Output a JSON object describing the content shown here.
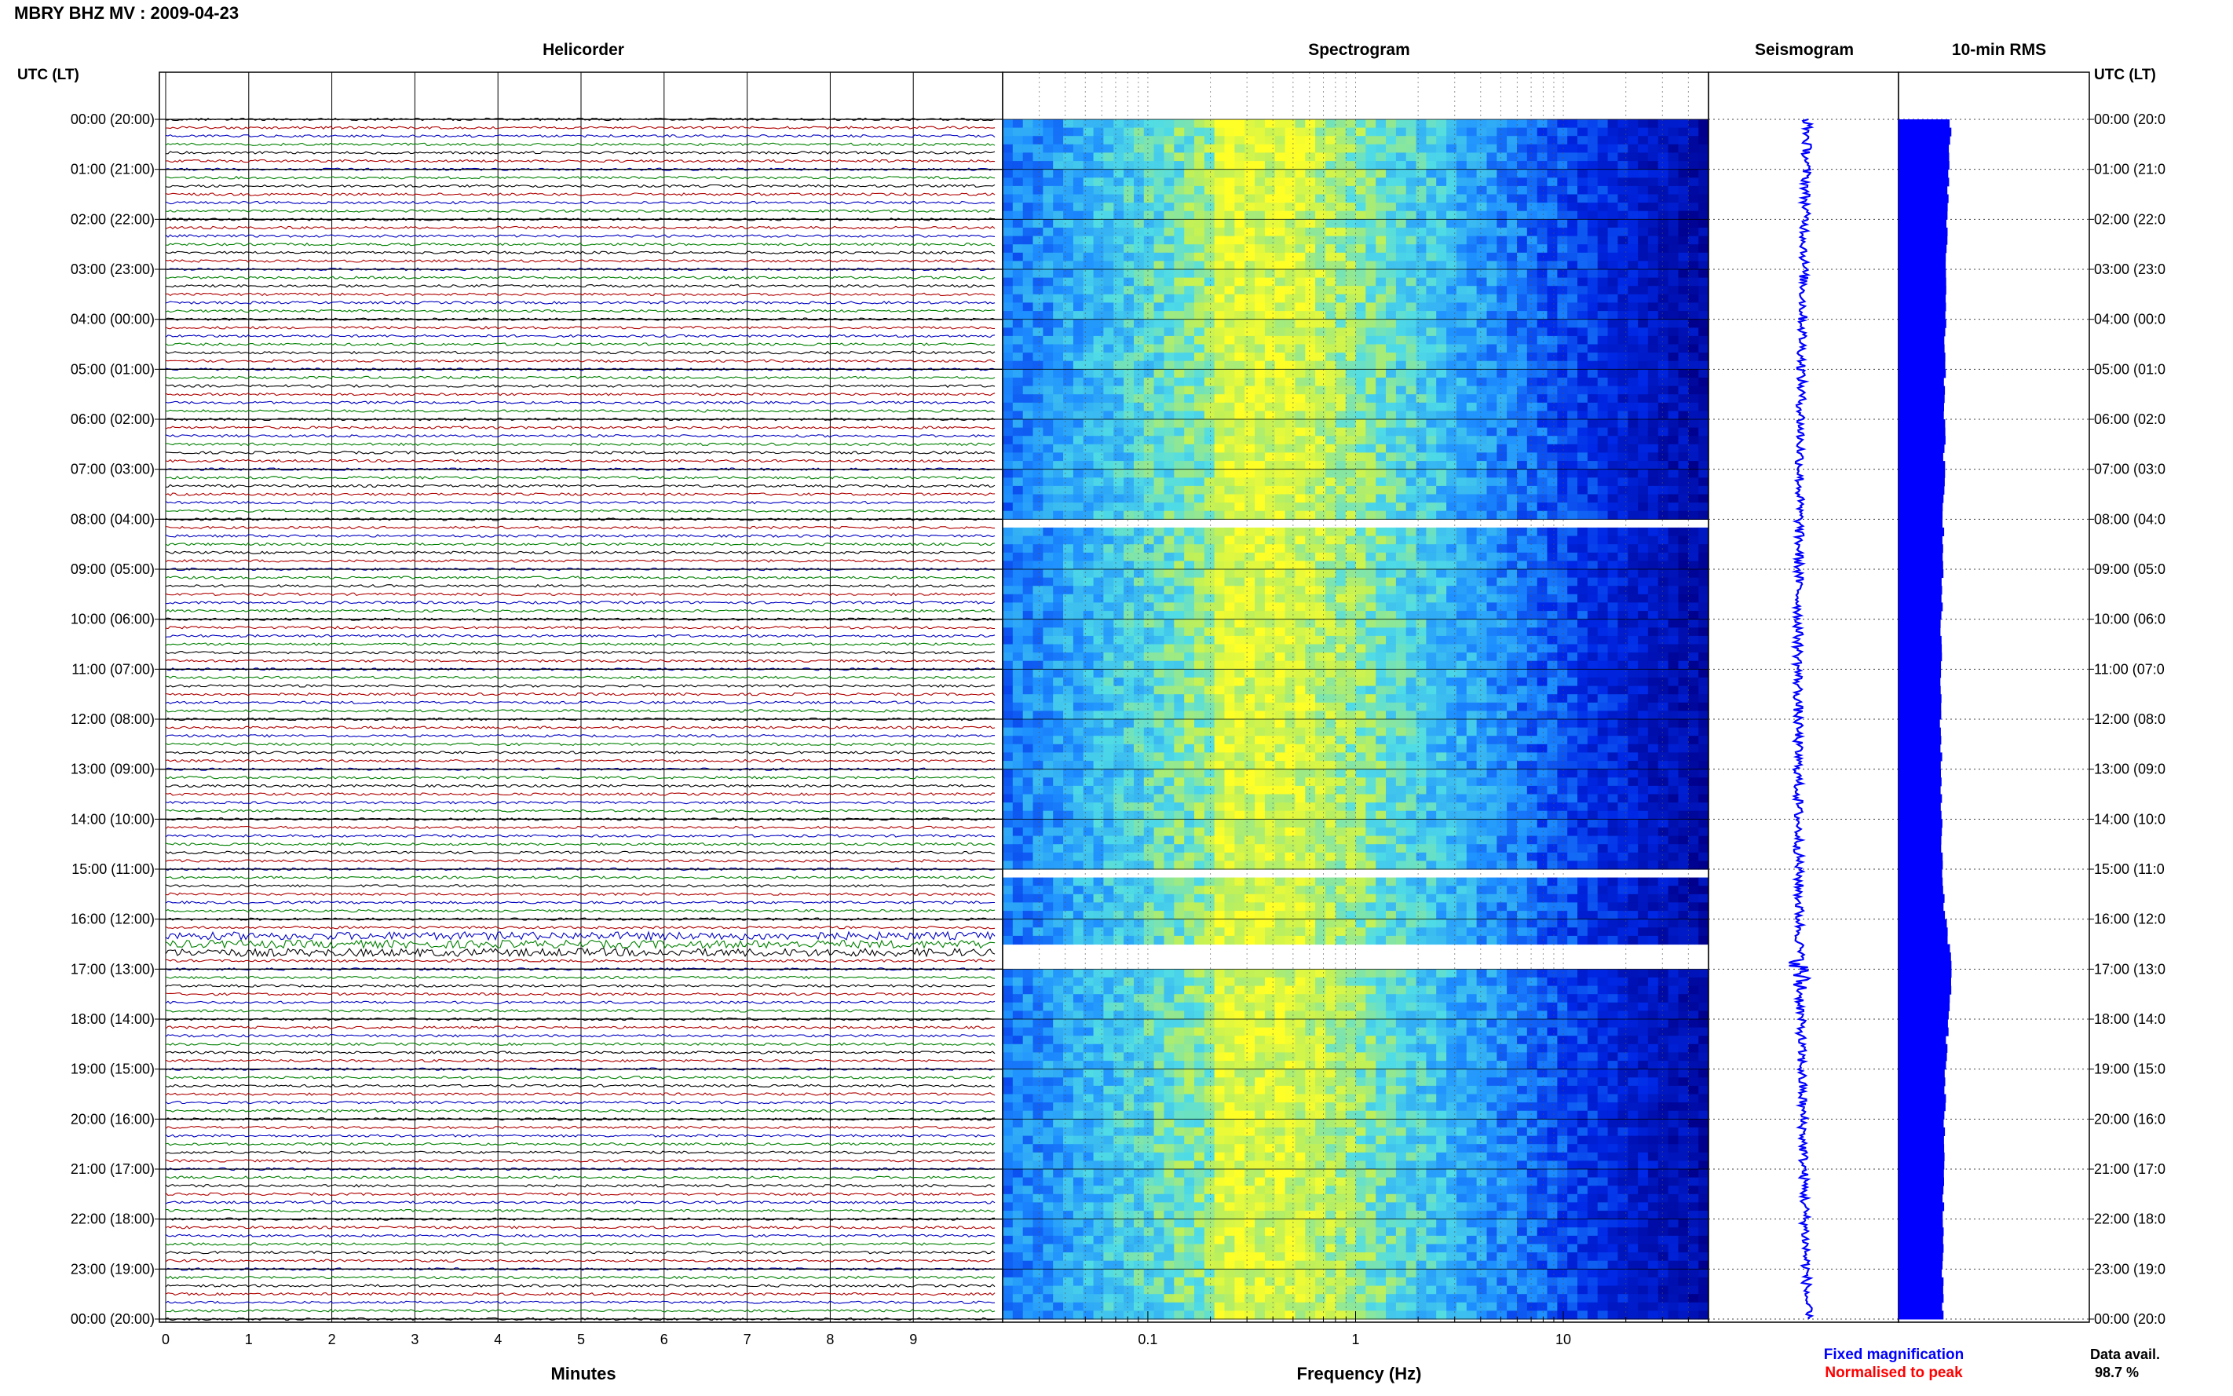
{
  "figure": {
    "title": "MBRY BHZ MV : 2009-04-23",
    "utc_header_left": "UTC (LT)",
    "utc_header_right": "UTC (LT)",
    "panel_titles": {
      "helicorder": "Helicorder",
      "spectrogram": "Spectrogram",
      "seismogram": "Seismogram",
      "rms": "10-min RMS"
    },
    "x_labels": {
      "helicorder": "Minutes",
      "spectrogram": "Frequency (Hz)"
    },
    "legend": {
      "fixed": "Fixed magnification",
      "normalised": "Normalised to peak"
    },
    "data_availability": {
      "label": "Data avail.",
      "value": "98.7 %"
    },
    "colors": {
      "trace_cycle": [
        "#000000",
        "#b00000",
        "#0000c0",
        "#008000"
      ],
      "fixed_legend": "#0000ff",
      "normalised_legend": "#ff0000",
      "spectrogram_low": "#00008b",
      "spectrogram_mid": "#1e90ff",
      "spectrogram_high": "#ffff00",
      "seismogram": "#0000ff",
      "rms": "#0000ff"
    }
  },
  "chart_data": [
    {
      "type": "line",
      "panel": "helicorder",
      "title": "Helicorder",
      "xlabel": "Minutes",
      "x_ticks": [
        0,
        1,
        2,
        3,
        4,
        5,
        6,
        7,
        8,
        9
      ],
      "xlim": [
        0,
        10
      ],
      "row_minutes": 10,
      "rows_per_day": 144,
      "y_tick_labels_left": [
        "00:00 (20:00)",
        "01:00 (21:00)",
        "02:00 (22:00)",
        "03:00 (23:00)",
        "04:00 (00:00)",
        "05:00 (01:00)",
        "06:00 (02:00)",
        "07:00 (03:00)",
        "08:00 (04:00)",
        "09:00 (05:00)",
        "10:00 (06:00)",
        "11:00 (07:00)",
        "12:00 (08:00)",
        "13:00 (09:00)",
        "14:00 (10:00)",
        "15:00 (11:00)",
        "16:00 (12:00)",
        "17:00 (13:00)",
        "18:00 (14:00)",
        "19:00 (15:00)",
        "20:00 (16:00)",
        "21:00 (17:00)",
        "22:00 (18:00)",
        "23:00 (19:00)",
        "00:00 (20:00)"
      ],
      "noisy_interval_utc": [
        "16:20",
        "16:40"
      ]
    },
    {
      "type": "heatmap",
      "panel": "spectrogram",
      "title": "Spectrogram",
      "xlabel": "Frequency (Hz)",
      "x_scale": "log",
      "xlim": [
        0.02,
        50
      ],
      "x_tick_labels": [
        "0.1",
        "1",
        "10"
      ],
      "x_tick_values": [
        0.1,
        1,
        10
      ],
      "peak_band_hz": [
        0.2,
        0.5
      ],
      "gaps_utc": [
        [
          "08:00",
          "08:10"
        ],
        [
          "15:00",
          "15:05"
        ],
        [
          "16:30",
          "16:55"
        ]
      ]
    },
    {
      "type": "line",
      "panel": "seismogram",
      "title": "Seismogram",
      "axis": "time (UTC)"
    },
    {
      "type": "bar",
      "panel": "rms",
      "title": "10-min RMS",
      "y_tick_labels_right": [
        "00:00 (20:0",
        "01:00 (21:0",
        "02:00 (22:0",
        "03:00 (23:0",
        "04:00 (00:0",
        "05:00 (01:0",
        "06:00 (02:0",
        "07:00 (03:0",
        "08:00 (04:0",
        "09:00 (05:0",
        "10:00 (06:0",
        "11:00 (07:0",
        "12:00 (08:0",
        "13:00 (09:0",
        "14:00 (10:0",
        "15:00 (11:0",
        "16:00 (12:0",
        "17:00 (13:0",
        "18:00 (14:0",
        "19:00 (15:0",
        "20:00 (16:0",
        "21:00 (17:0",
        "22:00 (18:0",
        "23:00 (19:0",
        "00:00 (20:0"
      ],
      "hours": [
        0,
        1,
        2,
        3,
        4,
        5,
        6,
        7,
        8,
        9,
        10,
        11,
        12,
        13,
        14,
        15,
        16,
        17,
        18,
        19,
        20,
        21,
        22,
        23,
        24
      ],
      "relative_rms": [
        0.95,
        0.92,
        0.88,
        0.86,
        0.85,
        0.84,
        0.84,
        0.83,
        0.82,
        0.8,
        0.78,
        0.77,
        0.77,
        0.78,
        0.78,
        0.8,
        0.85,
        0.98,
        0.9,
        0.86,
        0.84,
        0.82,
        0.82,
        0.8,
        0.8
      ]
    }
  ]
}
